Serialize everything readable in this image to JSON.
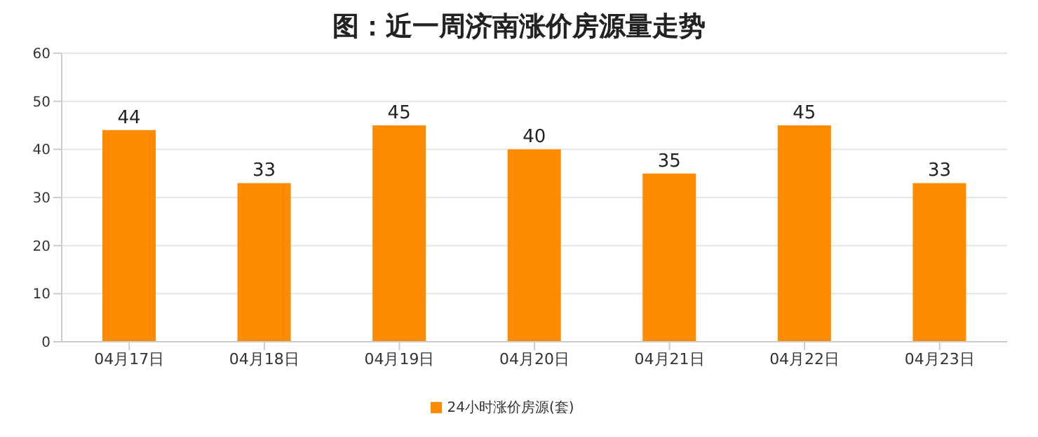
{
  "chart_data": {
    "type": "bar",
    "title": "图：近一周济南涨价房源量走势",
    "categories": [
      "04月17日",
      "04月18日",
      "04月19日",
      "04月20日",
      "04月21日",
      "04月22日",
      "04月23日"
    ],
    "series": [
      {
        "name": "24小时涨价房源(套)",
        "color": "#ff8c00",
        "values": [
          44,
          33,
          45,
          40,
          35,
          45,
          33
        ]
      }
    ],
    "ylim": [
      0,
      60
    ],
    "yticks": [
      0,
      10,
      20,
      30,
      40,
      50,
      60
    ],
    "grid": "y",
    "legend": "bottom",
    "data_labels": true
  }
}
